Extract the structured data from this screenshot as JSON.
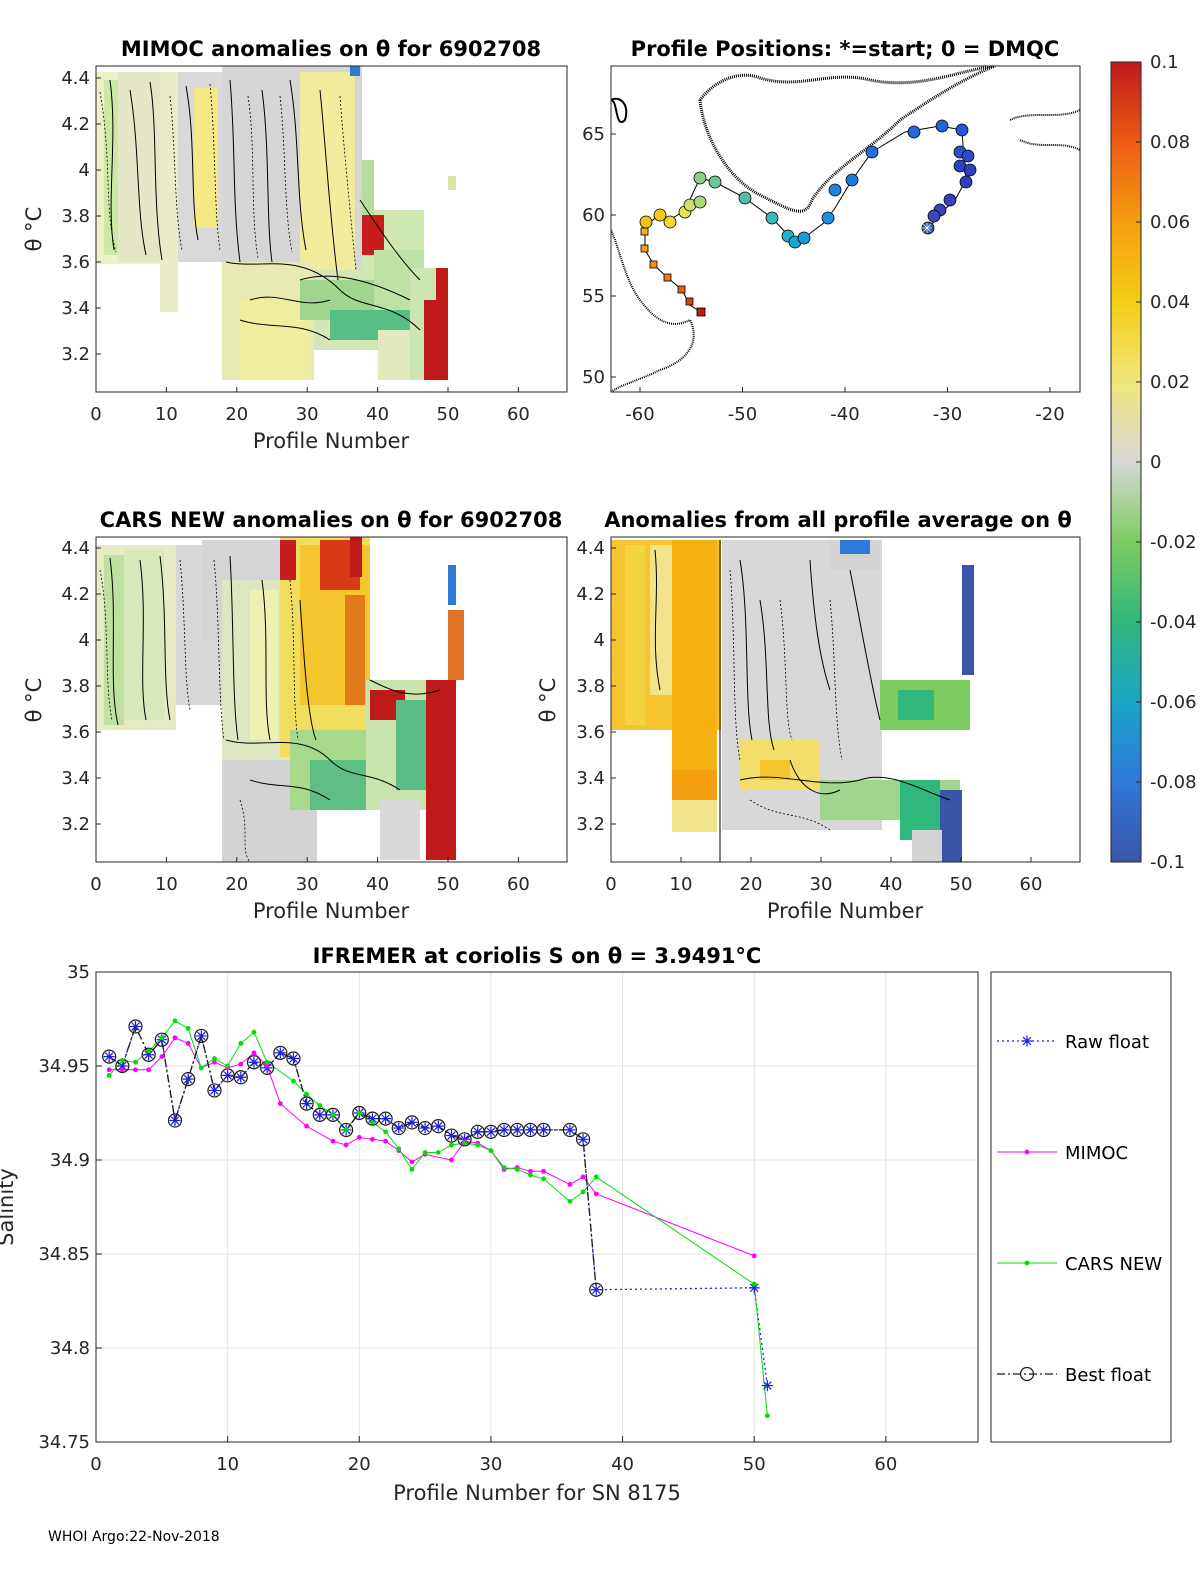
{
  "footer": "WHOI Argo:22-Nov-2018",
  "colorbar": {
    "ticks": [
      "0.1",
      "0.08",
      "0.06",
      "0.04",
      "0.02",
      "0",
      "-0.02",
      "-0.04",
      "-0.06",
      "-0.08",
      "-0.1"
    ],
    "colors": [
      "#3a55a8",
      "#2f79d9",
      "#1aa5c8",
      "#30b77b",
      "#7ccc5f",
      "#d7d7d7",
      "#f0e77a",
      "#f5cd16",
      "#f59e0f",
      "#ec5b14",
      "#c01919"
    ]
  },
  "panels": {
    "mimoc": {
      "title": "MIMOC anomalies on θ  for 6902708",
      "xlabel": "Profile Number",
      "ylabel": "θ °C",
      "xticks": [
        "0",
        "10",
        "20",
        "30",
        "40",
        "50",
        "60"
      ],
      "yticks": [
        "4.4",
        "4.2",
        "4",
        "3.8",
        "3.6",
        "3.4",
        "3.2"
      ]
    },
    "positions": {
      "title": "Profile Positions: *=start; 0 = DMQC",
      "xticks": [
        "-60",
        "-50",
        "-40",
        "-30",
        "-20"
      ],
      "yticks": [
        "65",
        "60",
        "55",
        "50"
      ]
    },
    "cars": {
      "title": "CARS NEW anomalies on θ for 6902708",
      "xlabel": "Profile Number",
      "ylabel": "θ °C",
      "xticks": [
        "0",
        "10",
        "20",
        "30",
        "40",
        "50",
        "60"
      ],
      "yticks": [
        "4.4",
        "4.2",
        "4",
        "3.8",
        "3.6",
        "3.4",
        "3.2"
      ]
    },
    "avg": {
      "title": "Anomalies from all profile average on θ",
      "xlabel": "Profile Number",
      "ylabel": "θ °C",
      "xticks": [
        "0",
        "10",
        "20",
        "30",
        "40",
        "50",
        "60"
      ],
      "yticks": [
        "4.4",
        "4.2",
        "4",
        "3.8",
        "3.6",
        "3.4",
        "3.2"
      ]
    }
  },
  "chart_data": {
    "type": "line",
    "title": "IFREMER at coriolis S on θ = 3.9491°C",
    "xlabel": "Profile Number for SN 8175",
    "ylabel": "Salinity",
    "xlim": [
      0,
      67
    ],
    "ylim": [
      34.75,
      35
    ],
    "xticks": [
      "0",
      "10",
      "20",
      "30",
      "40",
      "50",
      "60"
    ],
    "yticks": [
      "35",
      "34.95",
      "34.9",
      "34.85",
      "34.8",
      "34.75"
    ],
    "grid": true,
    "legend_position": "outside-right",
    "series": [
      {
        "name": "Raw float",
        "color": "#1f1fe0",
        "x": [
          1,
          2,
          3,
          4,
          5,
          6,
          7,
          8,
          9,
          10,
          11,
          12,
          13,
          14,
          15,
          16,
          17,
          18,
          19,
          20,
          21,
          22,
          23,
          24,
          25,
          26,
          27,
          28,
          29,
          30,
          31,
          32,
          33,
          34,
          36,
          37,
          38,
          50,
          51
        ],
        "y": [
          34.955,
          34.95,
          34.971,
          34.956,
          34.964,
          34.921,
          34.943,
          34.966,
          34.937,
          34.945,
          34.944,
          34.952,
          34.949,
          34.957,
          34.954,
          34.93,
          34.924,
          34.924,
          34.916,
          34.925,
          34.922,
          34.922,
          34.917,
          34.92,
          34.917,
          34.918,
          34.913,
          34.911,
          34.915,
          34.915,
          34.916,
          34.916,
          34.916,
          34.916,
          34.916,
          34.911,
          34.831,
          34.832,
          34.78
        ]
      },
      {
        "name": "MIMOC",
        "color": "#ff00ff",
        "x": [
          1,
          2,
          3,
          4,
          5,
          6,
          7,
          8,
          9,
          10,
          11,
          12,
          13,
          14,
          16,
          18,
          19,
          20,
          21,
          22,
          23,
          24,
          25,
          27,
          28,
          29,
          30,
          31,
          32,
          33,
          34,
          36,
          37,
          38,
          50
        ],
        "y": [
          34.948,
          34.948,
          34.948,
          34.948,
          34.955,
          34.965,
          34.962,
          34.949,
          34.952,
          34.949,
          34.951,
          34.957,
          34.95,
          34.93,
          34.918,
          34.91,
          34.908,
          34.912,
          34.911,
          34.91,
          34.905,
          34.899,
          34.903,
          34.9,
          34.91,
          34.909,
          34.905,
          34.895,
          34.896,
          34.894,
          34.894,
          34.887,
          34.891,
          34.882,
          34.849
        ]
      },
      {
        "name": "CARS NEW",
        "color": "#00e000",
        "x": [
          1,
          2,
          3,
          4,
          5,
          6,
          7,
          8,
          9,
          10,
          11,
          12,
          13,
          15,
          16,
          17,
          18,
          19,
          20,
          21,
          22,
          23,
          24,
          25,
          26,
          27,
          28,
          29,
          30,
          31,
          32,
          33,
          34,
          36,
          37,
          38,
          50,
          51
        ],
        "y": [
          34.945,
          34.953,
          34.952,
          34.958,
          34.965,
          34.974,
          34.97,
          34.949,
          34.954,
          34.95,
          34.962,
          34.968,
          34.952,
          34.942,
          34.935,
          34.929,
          34.924,
          34.916,
          34.925,
          34.92,
          34.915,
          34.906,
          34.895,
          34.904,
          34.904,
          34.908,
          34.909,
          34.908,
          34.905,
          34.896,
          34.895,
          34.892,
          34.89,
          34.878,
          34.883,
          34.891,
          34.834,
          34.764
        ]
      },
      {
        "name": "Best float",
        "color": "#1a1a1a",
        "x": [
          1,
          2,
          3,
          4,
          5,
          6,
          7,
          8,
          9,
          10,
          11,
          12,
          13,
          14,
          15,
          16,
          17,
          18,
          19,
          20,
          21,
          22,
          23,
          24,
          25,
          26,
          27,
          28,
          29,
          30,
          31,
          32,
          33,
          34,
          36,
          37,
          38
        ],
        "y": [
          34.955,
          34.95,
          34.971,
          34.956,
          34.964,
          34.921,
          34.943,
          34.966,
          34.937,
          34.945,
          34.944,
          34.952,
          34.949,
          34.957,
          34.954,
          34.93,
          34.924,
          34.924,
          34.916,
          34.925,
          34.922,
          34.922,
          34.917,
          34.92,
          34.917,
          34.918,
          34.913,
          34.911,
          34.915,
          34.915,
          34.916,
          34.916,
          34.916,
          34.916,
          34.916,
          34.911,
          34.831
        ]
      }
    ]
  }
}
